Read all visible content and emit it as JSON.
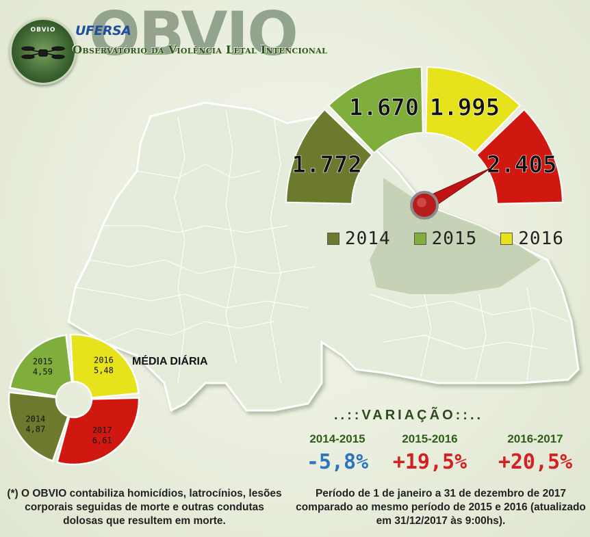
{
  "header": {
    "logo_text": "OBVIO",
    "university": "UFERSA",
    "brand": "OBVIO",
    "subtitle": "Observatório da Violência Letal Intencional"
  },
  "chart_data": [
    {
      "type": "gauge",
      "values": [
        1772,
        1670,
        1995,
        2405
      ],
      "labels": [
        "1.772",
        "1.670",
        "1.995",
        "2.405"
      ],
      "colors": [
        "#6b7a2c",
        "#7fae3c",
        "#e6e21b",
        "#d01810"
      ],
      "needle_points_to": "2.405"
    },
    {
      "type": "pie",
      "title": "MÉDIA DIÁRIA",
      "series": [
        {
          "name": "2014",
          "value": 4.87,
          "label": "4,87",
          "color": "#6b7a2c"
        },
        {
          "name": "2015",
          "value": 4.59,
          "label": "4,59",
          "color": "#7fae3c"
        },
        {
          "name": "2016",
          "value": 5.48,
          "label": "5,48",
          "color": "#e6e21b"
        },
        {
          "name": "2017",
          "value": 6.61,
          "label": "6,61",
          "color": "#d01810"
        }
      ]
    }
  ],
  "legend": [
    {
      "label": "2014",
      "color": "#6b7a2c"
    },
    {
      "label": "2015",
      "color": "#7fae3c"
    },
    {
      "label": "2016",
      "color": "#e6e21b"
    }
  ],
  "variacao": {
    "title": "..::VARIAÇÃO::..",
    "items": [
      {
        "period": "2014-2015",
        "value": "-5,8%",
        "color": "#2a74c4"
      },
      {
        "period": "2015-2016",
        "value": "+19,5%",
        "color": "#d42020"
      },
      {
        "period": "2016-2017",
        "value": "+20,5%",
        "color": "#d42020"
      }
    ]
  },
  "footnote": "(*) O OBVIO contabiliza homicídios, latrocínios, lesões corporais seguidas de morte e outras condutas dolosas que resultem em morte.",
  "period_note": "Período de 1 de janeiro a 31 de dezembro de 2017 comparado ao mesmo período de 2015 e 2016 (atualizado em 31/12/2017 às 9:00hs)."
}
